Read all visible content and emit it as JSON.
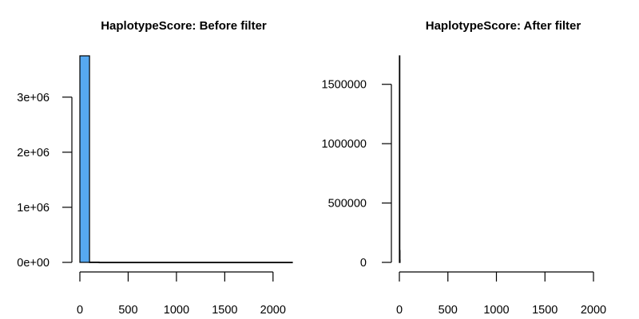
{
  "chart_data": [
    {
      "type": "bar",
      "title": "HaplotypeScore: Before filter",
      "xlabel": "",
      "ylabel": "",
      "bar_color": "#56a8f0",
      "x_ticks": [
        0,
        500,
        1000,
        1500,
        2000
      ],
      "x_tick_labels": [
        "0",
        "500",
        "1000",
        "1500",
        "2000"
      ],
      "y_ticks": [
        0,
        1000000,
        2000000,
        3000000
      ],
      "y_tick_labels": [
        "0e+00",
        "1e+06",
        "2e+06",
        "3e+06"
      ],
      "xlim": [
        0,
        2200
      ],
      "ylim": [
        0,
        3750000
      ],
      "bin_width": 100,
      "bins": [
        {
          "x0": 0,
          "x1": 100,
          "count": 3750000
        },
        {
          "x0": 100,
          "x1": 200,
          "count": 5000
        },
        {
          "x0": 200,
          "x1": 2200,
          "count": 2000
        }
      ]
    },
    {
      "type": "bar",
      "title": "HaplotypeScore: After filter",
      "xlabel": "",
      "ylabel": "",
      "bar_color": "#56a8f0",
      "x_ticks": [
        0,
        500,
        1000,
        1500,
        2000
      ],
      "x_tick_labels": [
        "0",
        "500",
        "1000",
        "1500",
        "2000"
      ],
      "y_ticks": [
        0,
        500000,
        1000000,
        1500000
      ],
      "y_tick_labels": [
        "0",
        "500000",
        "1000000",
        "1500000"
      ],
      "xlim": [
        0,
        2000
      ],
      "ylim": [
        0,
        1740000
      ],
      "bin_width": 1,
      "bins": [
        {
          "x0": 0,
          "x1": 1,
          "count": 1740000
        },
        {
          "x0": 1,
          "x1": 2,
          "count": 100000
        },
        {
          "x0": 2,
          "x1": 3,
          "count": 20000
        }
      ]
    }
  ]
}
